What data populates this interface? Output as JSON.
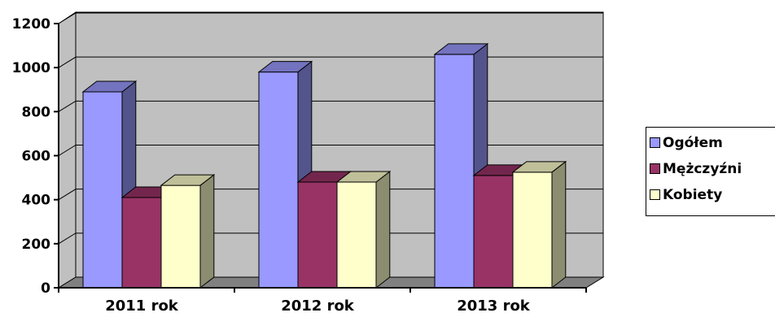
{
  "chart_data": {
    "type": "bar",
    "categories": [
      "2011 rok",
      "2012 rok",
      "2013 rok"
    ],
    "series": [
      {
        "name": "Ogółem",
        "values": [
          890,
          980,
          1060
        ]
      },
      {
        "name": "Mężczyźni",
        "values": [
          410,
          480,
          510
        ]
      },
      {
        "name": "Kobiety",
        "values": [
          465,
          480,
          525
        ]
      }
    ],
    "ylim": [
      0,
      1200
    ],
    "yticks": [
      "0",
      "200",
      "400",
      "600",
      "800",
      "1000",
      "1200"
    ],
    "grid": true,
    "legend_position": "right",
    "colors": {
      "series": [
        "#9999ff",
        "#993366",
        "#ffffcc"
      ],
      "wall": "#c0c0c0",
      "floor": "#808080"
    }
  }
}
